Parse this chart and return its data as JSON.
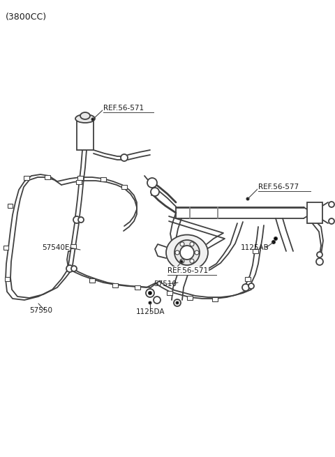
{
  "title": "(3800CC)",
  "background_color": "#ffffff",
  "line_color": "#404040",
  "text_color": "#1a1a1a",
  "labels": {
    "ref1": "REF.56-571",
    "ref2": "REF.56-577",
    "ref3": "REF.56-571",
    "p1": "57540E",
    "p2": "57510",
    "p3": "57550",
    "p4": "1125DA",
    "p5": "1125AB"
  },
  "fig_width": 4.8,
  "fig_height": 6.55,
  "dpi": 100
}
